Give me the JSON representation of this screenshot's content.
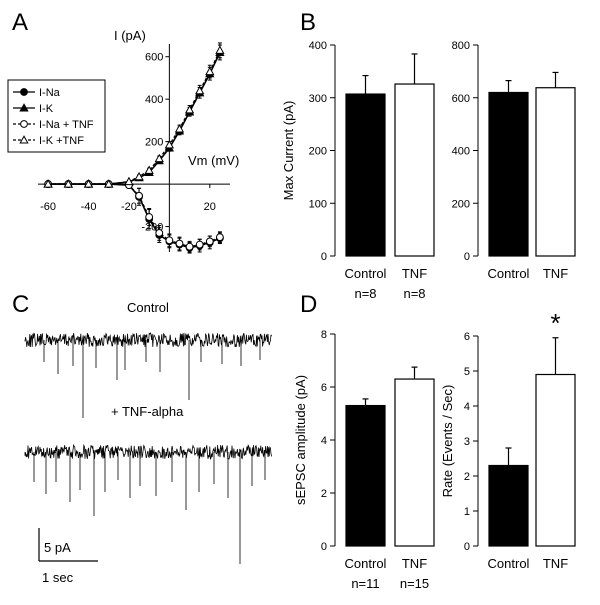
{
  "figure": {
    "panels": {
      "a": "A",
      "b": "B",
      "c": "C",
      "d": "D"
    }
  },
  "chart_data": [
    {
      "id": "A",
      "type": "line",
      "xlabel": "Vm (mV)",
      "ylabel": "I (pA)",
      "xlim": [
        -65,
        30
      ],
      "ylim": [
        -320,
        660
      ],
      "xticks": [
        -60,
        -40,
        -20,
        20
      ],
      "yticks": [
        -200,
        200,
        400,
        600
      ],
      "x": [
        -60,
        -50,
        -40,
        -30,
        -20,
        -15,
        -10,
        -5,
        0,
        5,
        10,
        15,
        20,
        25
      ],
      "legend_position": "left",
      "series": [
        {
          "name": "I-Na",
          "style": "solid",
          "marker": "circle-filled",
          "values": [
            0,
            0,
            0,
            0,
            -5,
            -60,
            -165,
            -240,
            -270,
            -285,
            -300,
            -290,
            -275,
            -255
          ],
          "errors": [
            0,
            0,
            0,
            0,
            10,
            40,
            45,
            35,
            30,
            30,
            25,
            30,
            30,
            25
          ]
        },
        {
          "name": "I-K",
          "style": "solid",
          "marker": "triangle-filled",
          "values": [
            0,
            0,
            0,
            0,
            10,
            30,
            55,
            110,
            170,
            250,
            340,
            430,
            520,
            620
          ],
          "errors": [
            0,
            0,
            0,
            0,
            5,
            8,
            10,
            12,
            15,
            18,
            20,
            25,
            30,
            35
          ]
        },
        {
          "name": "I-Na + TNF",
          "style": "dashed",
          "marker": "circle-open",
          "values": [
            0,
            0,
            0,
            0,
            -5,
            -55,
            -155,
            -230,
            -265,
            -280,
            -295,
            -285,
            -270,
            -250
          ],
          "errors": [
            0,
            0,
            0,
            0,
            10,
            35,
            40,
            35,
            30,
            30,
            25,
            25,
            25,
            25
          ]
        },
        {
          "name": "I-K +TNF",
          "style": "dashed",
          "marker": "triangle-open",
          "values": [
            0,
            0,
            0,
            0,
            12,
            35,
            65,
            120,
            185,
            260,
            350,
            440,
            530,
            630
          ],
          "errors": [
            0,
            0,
            0,
            0,
            5,
            8,
            10,
            12,
            15,
            18,
            20,
            25,
            30,
            35
          ]
        }
      ]
    },
    {
      "id": "B-left",
      "type": "bar",
      "ylabel": "Max Current (pA)",
      "ylim": [
        0,
        400
      ],
      "yticks": [
        0,
        100,
        200,
        300,
        400
      ],
      "categories": [
        "Control",
        "TNF"
      ],
      "values": [
        307,
        326
      ],
      "errors": [
        35,
        57
      ],
      "fills": [
        "#000000",
        "#ffffff"
      ],
      "n_labels": [
        "n=8",
        "n=8"
      ]
    },
    {
      "id": "B-right",
      "type": "bar",
      "ylabel": "",
      "ylim": [
        0,
        800
      ],
      "yticks": [
        0,
        200,
        400,
        600,
        800
      ],
      "categories": [
        "Control",
        "TNF"
      ],
      "values": [
        620,
        638
      ],
      "errors": [
        45,
        58
      ],
      "fills": [
        "#000000",
        "#ffffff"
      ],
      "n_labels": []
    },
    {
      "id": "D-left",
      "type": "bar",
      "ylabel": "sEPSC amplitude (pA)",
      "ylim": [
        0,
        8
      ],
      "yticks": [
        0,
        2,
        4,
        6,
        8
      ],
      "categories": [
        "Control",
        "TNF"
      ],
      "values": [
        5.3,
        6.3
      ],
      "errors": [
        0.25,
        0.45
      ],
      "fills": [
        "#000000",
        "#ffffff"
      ],
      "n_labels": [
        "n=11",
        "n=15"
      ]
    },
    {
      "id": "D-right",
      "type": "bar",
      "ylabel": "Rate (Events / Sec)",
      "ylim": [
        0,
        6
      ],
      "yticks": [
        0,
        1,
        2,
        3,
        4,
        5,
        6
      ],
      "categories": [
        "Control",
        "TNF"
      ],
      "values": [
        2.3,
        4.9
      ],
      "errors": [
        0.5,
        1.05
      ],
      "fills": [
        "#000000",
        "#ffffff"
      ],
      "n_labels": [],
      "annotation": "*"
    }
  ],
  "traces": {
    "control_label": "Control",
    "tnf_label": "+ TNF-alpha",
    "scale_amplitude": "5 pA",
    "scale_time": "1 sec"
  }
}
